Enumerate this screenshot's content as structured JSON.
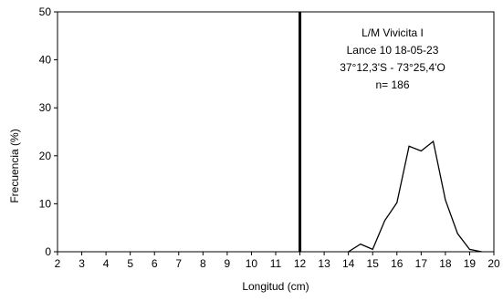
{
  "chart_data": {
    "type": "line",
    "title": "",
    "xlabel": "Longitud (cm)",
    "ylabel": "Frecuencia (%)",
    "xlim": [
      2,
      20
    ],
    "ylim": [
      0,
      50
    ],
    "xticks": [
      2,
      3,
      4,
      5,
      6,
      7,
      8,
      9,
      10,
      11,
      12,
      13,
      14,
      15,
      16,
      17,
      18,
      19,
      20
    ],
    "yticks": [
      0,
      10,
      20,
      30,
      40,
      50
    ],
    "grid": false,
    "legend": "none",
    "series": [
      {
        "x": [
          14,
          14.5,
          15,
          15.5,
          16,
          16.5,
          17,
          17.5,
          18,
          18.5,
          19,
          19.5
        ],
        "y": [
          0,
          1.6,
          0.5,
          6.5,
          10.2,
          22,
          21,
          23,
          10.8,
          3.8,
          0.5,
          0
        ],
        "color": "#000000"
      }
    ],
    "reference_line": {
      "x": 12,
      "color": "#000000"
    },
    "annotation": {
      "lines": [
        "L/M Vivicita I",
        "Lance 10  18-05-23",
        "37°12,3'S - 73°25,4'O",
        "n= 186"
      ]
    }
  }
}
